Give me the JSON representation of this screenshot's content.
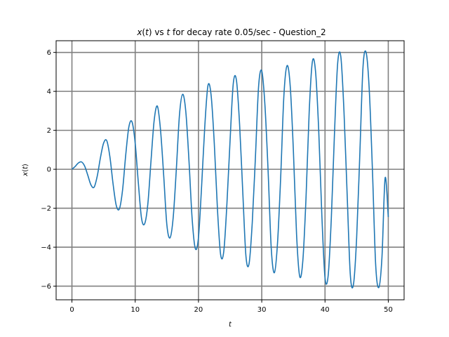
{
  "chart_data": {
    "type": "line",
    "title": {
      "var": "x",
      "paren_open": "(",
      "t1": "t",
      "paren_close": ")",
      "mid": " vs ",
      "t2": "t",
      "rest": " for decay rate 0.05/sec - Question_2"
    },
    "xlabel": "t",
    "ylabel": {
      "var": "x",
      "paren_open": "(",
      "t": "t",
      "paren_close": ")"
    },
    "xlim": [
      -2.5,
      52.5
    ],
    "ylim": [
      -6.7,
      6.6
    ],
    "xticks": [
      0,
      10,
      20,
      30,
      40,
      50
    ],
    "xtick_labels": [
      "0",
      "10",
      "20",
      "30",
      "40",
      "50"
    ],
    "yticks": [
      -6,
      -4,
      -2,
      0,
      2,
      4,
      6
    ],
    "ytick_labels": [
      "−6",
      "−4",
      "−2",
      "0",
      "2",
      "4",
      "6"
    ],
    "grid": true,
    "grid_color": "#808080",
    "line_color": "#1f77b4",
    "series": [
      {
        "x": [
          0,
          0.5,
          1.0,
          1.5,
          2.0,
          2.5,
          3.0,
          3.5,
          4.0,
          4.5,
          5.0,
          5.5,
          6.0,
          6.5,
          7.0,
          7.5,
          8.0,
          8.5,
          9.0,
          9.5,
          10.0,
          10.5,
          11.0,
          11.5,
          12.0,
          12.5,
          13.0,
          13.5,
          14.0,
          14.5,
          15.0,
          15.5,
          16.0,
          16.5,
          17.0,
          17.5,
          18.0,
          18.5,
          19.0,
          19.5,
          20.0,
          20.5,
          21.0,
          21.5,
          22.0,
          22.5,
          23.0,
          23.5,
          24.0,
          24.5,
          25.0,
          25.5,
          26.0,
          26.5,
          27.0,
          27.5,
          28.0,
          28.5,
          29.0,
          29.5,
          30.0,
          30.5,
          31.0,
          31.5,
          32.0,
          32.5,
          33.0,
          33.5,
          34.0,
          34.5,
          35.0,
          35.5,
          36.0,
          36.5,
          37.0,
          37.5,
          38.0,
          38.5,
          39.0,
          39.5,
          40.0,
          40.5,
          41.0,
          41.5,
          42.0,
          42.5,
          43.0,
          43.5,
          44.0,
          44.5,
          45.0,
          45.5,
          46.0,
          46.5,
          47.0,
          47.5,
          48.0,
          48.5,
          49.0,
          49.5,
          50.0
        ],
        "y": [
          0.0,
          0.14,
          0.32,
          0.38,
          0.17,
          -0.3,
          -0.8,
          -0.92,
          -0.35,
          0.59,
          1.34,
          1.47,
          0.64,
          -0.75,
          -1.85,
          -2.03,
          -1.07,
          0.73,
          2.18,
          2.43,
          1.33,
          -0.72,
          -2.52,
          -2.79,
          -1.77,
          0.45,
          2.52,
          3.24,
          2.02,
          -0.31,
          -2.84,
          -3.52,
          -2.49,
          0.0,
          2.81,
          3.85,
          2.95,
          0.43,
          -2.55,
          -4.07,
          -3.5,
          -0.84,
          2.22,
          4.3,
          3.79,
          1.32,
          -2.05,
          -4.38,
          -4.21,
          -1.74,
          1.52,
          4.4,
          4.57,
          2.3,
          -1.16,
          -4.45,
          -4.84,
          -2.74,
          0.62,
          4.24,
          5.05,
          3.31,
          -0.05,
          -4.05,
          -5.31,
          -3.75,
          -0.35,
          3.78,
          5.32,
          4.27,
          0.96,
          -3.33,
          -5.5,
          -4.67,
          -1.44,
          2.96,
          5.52,
          5.03,
          2.03,
          -2.37,
          -5.57,
          -5.45,
          -2.49,
          1.88,
          5.44,
          5.78,
          2.95,
          -1.31,
          -5.42,
          -5.9,
          -3.51,
          0.76,
          5.22,
          5.99,
          4.04,
          -0.09,
          -4.86,
          -6.07,
          -4.52,
          -0.45,
          -2.45
        ]
      }
    ]
  }
}
